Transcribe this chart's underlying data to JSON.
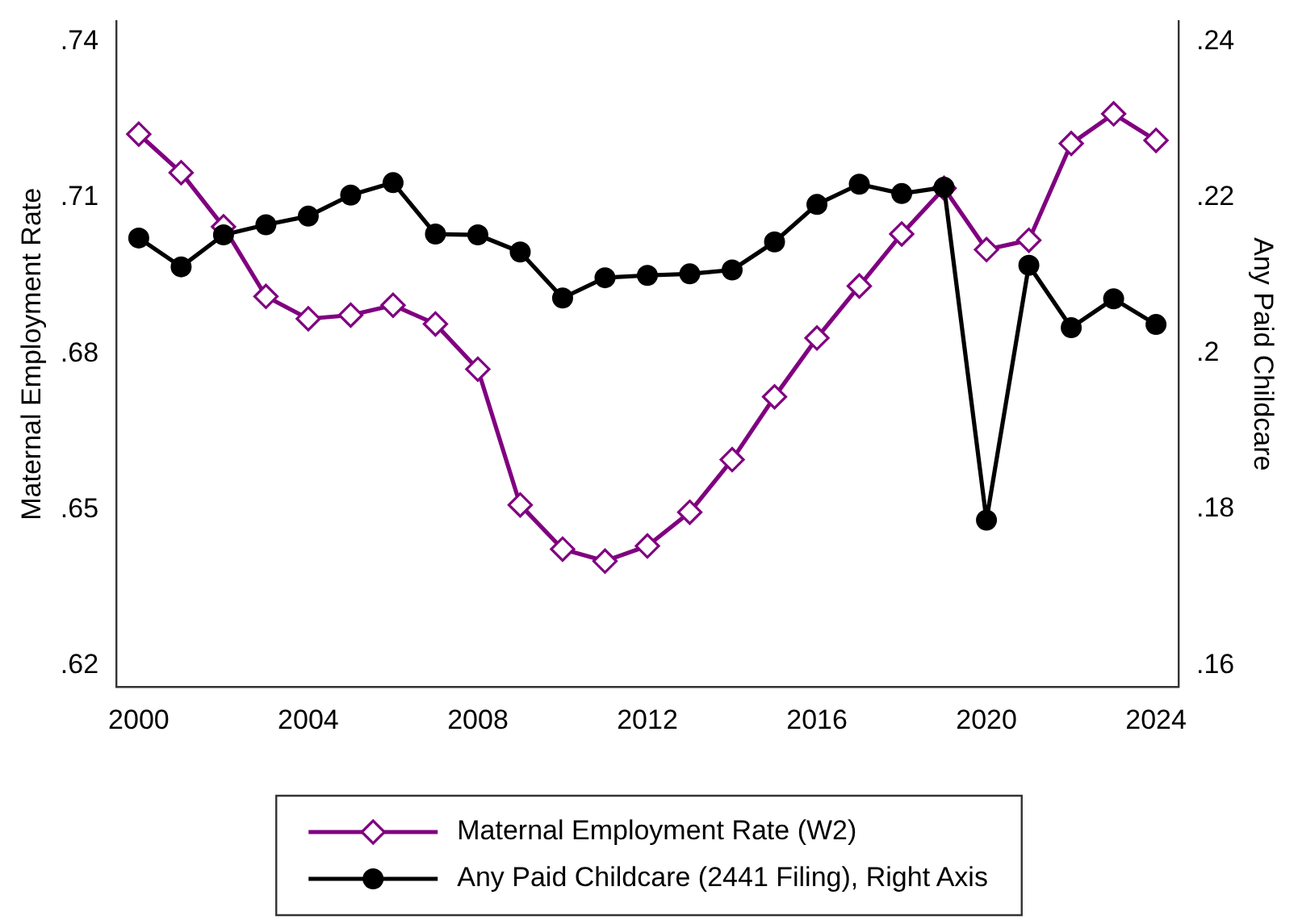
{
  "chart_data": {
    "type": "line",
    "ylabel": "Maternal Employment Rate",
    "y2label": "Any Paid Childcare",
    "legend": "bottom",
    "x": [
      2000,
      2001,
      2002,
      2003,
      2004,
      2005,
      2006,
      2007,
      2008,
      2009,
      2010,
      2011,
      2012,
      2013,
      2014,
      2015,
      2016,
      2017,
      2018,
      2019,
      2020,
      2021,
      2022,
      2023,
      2024
    ],
    "xlim": [
      1999.47,
      2024.53
    ],
    "xticks": [
      2000,
      2004,
      2008,
      2012,
      2016,
      2020,
      2024
    ],
    "ylim": [
      0.6159,
      0.7439
    ],
    "yticks": [
      {
        "value": 0.62,
        "label": ".62"
      },
      {
        "value": 0.65,
        "label": ".65"
      },
      {
        "value": 0.68,
        "label": ".68"
      },
      {
        "value": 0.71,
        "label": ".71"
      },
      {
        "value": 0.74,
        "label": ".74"
      }
    ],
    "y2lim": [
      0.1572,
      0.2426
    ],
    "y2ticks": [
      {
        "value": 0.16,
        "label": ".16"
      },
      {
        "value": 0.18,
        "label": ".18"
      },
      {
        "value": 0.2,
        "label": ".2"
      },
      {
        "value": 0.22,
        "label": ".22"
      },
      {
        "value": 0.24,
        "label": ".24"
      }
    ],
    "series": [
      {
        "name": "Maternal Employment Rate (W2)",
        "color": "#800080",
        "marker": "diamond",
        "values": [
          0.7222,
          0.7148,
          0.7044,
          0.691,
          0.6867,
          0.6874,
          0.6893,
          0.6857,
          0.677,
          0.6509,
          0.6424,
          0.6401,
          0.643,
          0.6495,
          0.6596,
          0.6717,
          0.683,
          0.693,
          0.703,
          0.7118,
          0.7,
          0.7018,
          0.7204,
          0.7261,
          0.721
        ]
      },
      {
        "name": "Any Paid Childcare (2441 Filing), Right Axis",
        "color": "#000000",
        "marker": "circle",
        "axis": "y2",
        "values": [
          0.2148,
          0.2111,
          0.2152,
          0.2165,
          0.2176,
          0.2203,
          0.2219,
          0.2153,
          0.2152,
          0.213,
          0.2071,
          0.2097,
          0.21,
          0.2102,
          0.2107,
          0.2143,
          0.2191,
          0.2217,
          0.2205,
          0.2213,
          0.1786,
          0.2113,
          0.2033,
          0.207,
          0.2037
        ]
      }
    ]
  }
}
